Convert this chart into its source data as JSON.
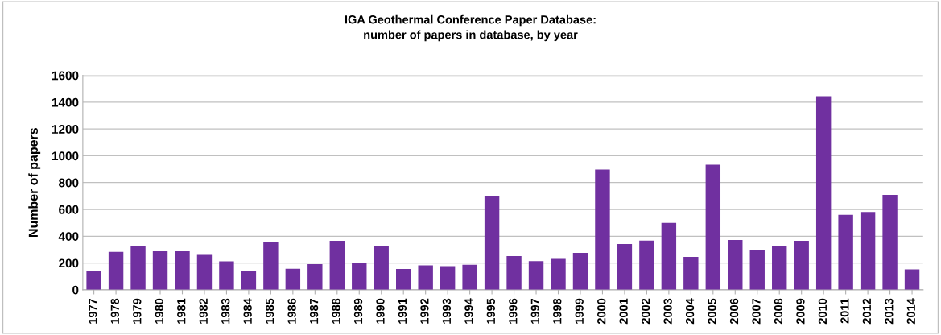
{
  "chart_data": {
    "type": "bar",
    "title": "IGA Geothermal Conference Paper Database:\nnumber of papers in database, by year",
    "ylabel": "Number of papers",
    "categories": [
      "1977",
      "1978",
      "1979",
      "1980",
      "1981",
      "1982",
      "1983",
      "1984",
      "1985",
      "1986",
      "1987",
      "1988",
      "1989",
      "1990",
      "1991",
      "1992",
      "1993",
      "1994",
      "1995",
      "1996",
      "1997",
      "1998",
      "1999",
      "2000",
      "2001",
      "2002",
      "2003",
      "2004",
      "2005",
      "2006",
      "2007",
      "2008",
      "2009",
      "2010",
      "2011",
      "2012",
      "2013",
      "2014"
    ],
    "values": [
      140,
      283,
      323,
      287,
      287,
      260,
      213,
      138,
      355,
      157,
      191,
      366,
      202,
      330,
      155,
      183,
      177,
      187,
      700,
      251,
      214,
      231,
      276,
      898,
      341,
      367,
      499,
      246,
      933,
      371,
      298,
      330,
      365,
      1445,
      559,
      581,
      708,
      153
    ],
    "color": "#7030a0",
    "ylim": [
      0,
      1600
    ],
    "yticks": [
      0,
      200,
      400,
      600,
      800,
      1000,
      1200,
      1400,
      1600
    ],
    "grid": "y"
  }
}
